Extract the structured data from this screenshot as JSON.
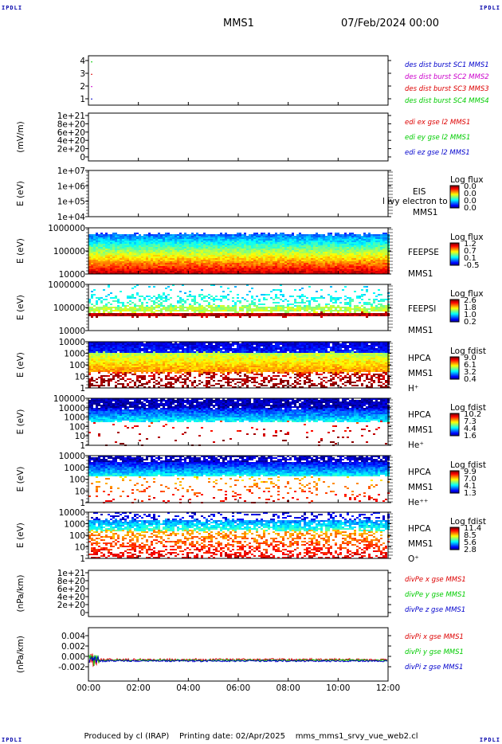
{
  "corner_tag": "IPDLI",
  "header": {
    "spacecraft": "MMS1",
    "datetime": "07/Feb/2024 00:00"
  },
  "footer": {
    "producer": "Produced by cl (IRAP)",
    "printing_date": "Printing date: 02/Apr/2025",
    "config_file": "mms_mms1_srvy_vue_web2.cl"
  },
  "colors": {
    "red": "#dd0000",
    "green": "#00cc00",
    "blue": "#0000cc",
    "magenta": "#cc00cc",
    "axis": "#000000"
  },
  "chart_data": {
    "type": "heatmap",
    "x_ticks": [
      "00:00",
      "02:00",
      "04:00",
      "06:00",
      "08:00",
      "10:00",
      "12:00"
    ],
    "xlim": [
      "00:00",
      "12:00"
    ],
    "panels": [
      {
        "id": "des-dist",
        "type": "line",
        "ylabel": "",
        "yticks": [
          "4",
          "3",
          "2",
          "1"
        ],
        "ylim": [
          0.5,
          4.5
        ],
        "series": [
          {
            "name": "des dist burst SC1 MMS1",
            "color": "#0000cc",
            "values": [
              1
            ]
          },
          {
            "name": "des dist burst SC2 MMS2",
            "color": "#cc00cc",
            "values": [
              2
            ]
          },
          {
            "name": "des dist burst SC3 MMS3",
            "color": "#dd0000",
            "values": [
              3
            ]
          },
          {
            "name": "des dist burst SC4 MMS4",
            "color": "#00cc00",
            "values": [
              4
            ]
          }
        ]
      },
      {
        "id": "edi",
        "type": "line",
        "ylabel": "(mV/m)",
        "yticks": [
          "1e+21",
          "8e+20",
          "6e+20",
          "4e+20",
          "2e+20",
          "0"
        ],
        "ylim": [
          0,
          1e+21
        ],
        "series": [
          {
            "name": "edi ex gse l2 MMS1",
            "color": "#dd0000",
            "values": [
              0
            ]
          },
          {
            "name": "edi ey gse l2 MMS1",
            "color": "#00cc00",
            "values": [
              0
            ]
          },
          {
            "name": "edi ez gse l2 MMS1",
            "color": "#0000cc",
            "values": [
              0
            ]
          }
        ]
      },
      {
        "id": "eis",
        "type": "heatmap",
        "ylabel": "E (eV)",
        "yticks": [
          "1e+07",
          "1e+06",
          "1e+05",
          "1e+04"
        ],
        "ylim": [
          10000.0,
          10000000.0
        ],
        "log": true,
        "labels": [
          "EIS",
          "MMS1"
        ],
        "overlay_text": "l ivy electron to",
        "colorbar": {
          "title": "Log flux",
          "ticks": [
            "0.0",
            "0.0",
            "0.0",
            "0.0"
          ]
        }
      },
      {
        "id": "feepse",
        "type": "heatmap",
        "ylabel": "E (eV)",
        "yticks": [
          "1000000",
          "100000",
          "10000"
        ],
        "ylim": [
          10000.0,
          1000000.0
        ],
        "log": true,
        "labels": [
          "FEEPSE",
          "MMS1"
        ],
        "colorbar": {
          "title": "Log flux",
          "ticks": [
            "1.2",
            "0.7",
            "0.1",
            "-0.5"
          ]
        }
      },
      {
        "id": "feepsi",
        "type": "heatmap",
        "ylabel": "E (eV)",
        "yticks": [
          "1000000",
          "100000",
          "10000"
        ],
        "ylim": [
          10000.0,
          1000000.0
        ],
        "log": true,
        "labels": [
          "FEEPSI",
          "MMS1"
        ],
        "colorbar": {
          "title": "Log flux",
          "ticks": [
            "2.6",
            "1.8",
            "1.0",
            "0.2"
          ]
        }
      },
      {
        "id": "hpca-h",
        "type": "heatmap",
        "ylabel": "E (eV)",
        "yticks": [
          "10000",
          "1000",
          "100",
          "10",
          "1"
        ],
        "ylim": [
          1,
          30000
        ],
        "log": true,
        "labels": [
          "HPCA",
          "MMS1",
          "H⁺"
        ],
        "colorbar": {
          "title": "Log fdist",
          "ticks": [
            "9.0",
            "6.1",
            "3.2",
            "0.4"
          ]
        }
      },
      {
        "id": "hpca-he",
        "type": "heatmap",
        "ylabel": "E (eV)",
        "yticks": [
          "100000",
          "10000",
          "1000",
          "100",
          "10",
          "1"
        ],
        "ylim": [
          1,
          100000
        ],
        "log": true,
        "labels": [
          "HPCA",
          "MMS1",
          "He⁺"
        ],
        "colorbar": {
          "title": "Log fdist",
          "ticks": [
            "10.2",
            "7.3",
            "4.4",
            "1.6"
          ]
        }
      },
      {
        "id": "hpca-hepp",
        "type": "heatmap",
        "ylabel": "E (eV)",
        "yticks": [
          "10000",
          "1000",
          "100",
          "10",
          "1"
        ],
        "ylim": [
          1,
          30000
        ],
        "log": true,
        "labels": [
          "HPCA",
          "MMS1",
          "He⁺⁺"
        ],
        "colorbar": {
          "title": "Log fdist",
          "ticks": [
            "9.9",
            "7.0",
            "4.1",
            "1.3"
          ]
        }
      },
      {
        "id": "hpca-o",
        "type": "heatmap",
        "ylabel": "E (eV)",
        "yticks": [
          "10000",
          "1000",
          "100",
          "10",
          "1"
        ],
        "ylim": [
          1,
          30000
        ],
        "log": true,
        "labels": [
          "HPCA",
          "MMS1",
          "O⁺"
        ],
        "colorbar": {
          "title": "Log fdist",
          "ticks": [
            "11.4",
            "8.5",
            "5.6",
            "2.8"
          ]
        }
      },
      {
        "id": "divpe",
        "type": "line",
        "ylabel": "(nPa/km)",
        "yticks": [
          "1e+21",
          "8e+20",
          "6e+20",
          "4e+20",
          "2e+20",
          "0"
        ],
        "ylim": [
          0,
          1e+21
        ],
        "series": [
          {
            "name": "divPe x gse MMS1",
            "color": "#dd0000",
            "values": [
              0
            ]
          },
          {
            "name": "divPe y gse MMS1",
            "color": "#00cc00",
            "values": [
              0
            ]
          },
          {
            "name": "divPe z gse MMS1",
            "color": "#0000cc",
            "values": [
              0
            ]
          }
        ]
      },
      {
        "id": "divpi",
        "type": "line",
        "ylabel": "(nPa/km)",
        "yticks": [
          "0.004",
          "0.002",
          "0.000",
          "-0.002"
        ],
        "ylim": [
          -0.0035,
          0.0055
        ],
        "series": [
          {
            "name": "divPi x gse MMS1",
            "color": "#dd0000",
            "values": [
              0.0
            ]
          },
          {
            "name": "divPi y gse MMS1",
            "color": "#00cc00",
            "values": [
              0.0
            ]
          },
          {
            "name": "divPi z gse MMS1",
            "color": "#0000cc",
            "values": [
              0.0
            ]
          }
        ]
      }
    ]
  }
}
